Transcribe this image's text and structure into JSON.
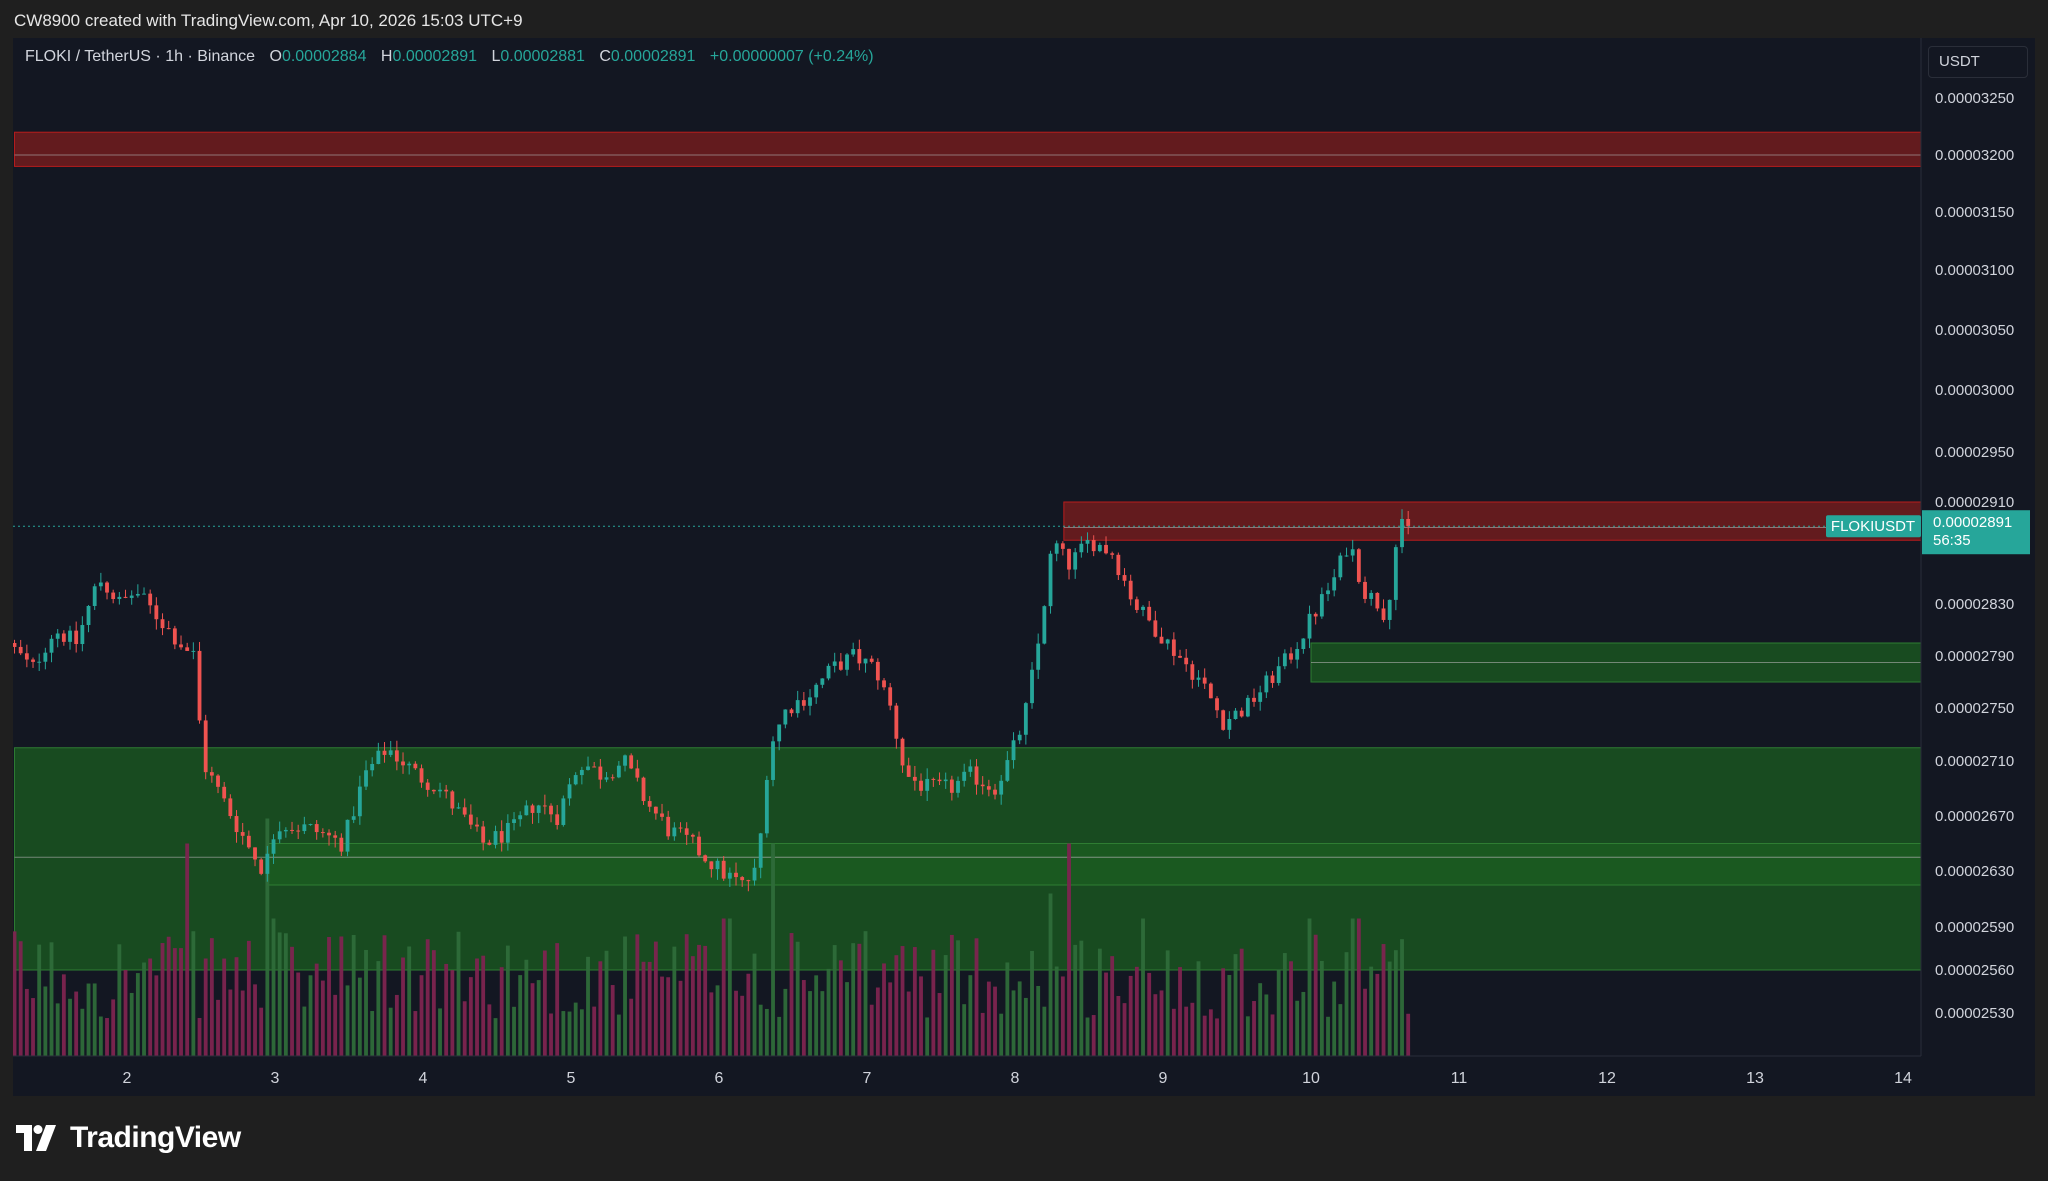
{
  "header": {
    "attribution": "CW8900 created with TradingView.com, Apr 10, 2026 15:03 UTC+9"
  },
  "legend": {
    "symbol": "FLOKI / TetherUS · 1h · Binance",
    "open_label": "O",
    "open": "0.00002884",
    "high_label": "H",
    "high": "0.00002891",
    "low_label": "L",
    "low": "0.00002881",
    "close_label": "C",
    "close": "0.00002891",
    "change": "+0.00000007 (+0.24%)"
  },
  "currency_button": "USDT",
  "price_tag": {
    "symbol": "FLOKIUSDT",
    "price": "0.00002891",
    "countdown": "56:35"
  },
  "footer": {
    "brand": "TradingView"
  },
  "colors": {
    "background": "#131722",
    "up": "#26a69a",
    "down": "#ef5350",
    "resistance_zone": "#7f1d1d",
    "support_zone": "#1b5e20"
  },
  "chart_data": {
    "type": "candlestick",
    "symbol": "FLOKIUSDT",
    "interval": "1h",
    "ylim": [
      2.5e-05,
      3.3e-05
    ],
    "y_ticks": [
      "0.00003250",
      "0.00003200",
      "0.00003150",
      "0.00003100",
      "0.00003050",
      "0.00003000",
      "0.00002950",
      "0.00002910",
      "0.00002830",
      "0.00002790",
      "0.00002750",
      "0.00002710",
      "0.00002670",
      "0.00002630",
      "0.00002590",
      "0.00002560",
      "0.00002530"
    ],
    "x_ticks": [
      "2",
      "3",
      "4",
      "5",
      "6",
      "7",
      "8",
      "9",
      "10",
      "11",
      "12",
      "13",
      "14"
    ],
    "x_tick_days": [
      2,
      3,
      4,
      5,
      6,
      7,
      8,
      9,
      10,
      11,
      12,
      13,
      14
    ],
    "xlim_days": [
      1.24,
      14.12
    ],
    "last_price": 2.891e-05,
    "zones": [
      {
        "kind": "resistance",
        "from": 3.19e-05,
        "to": 3.22e-05,
        "start_day": 1.24,
        "mid": 3.2e-05
      },
      {
        "kind": "resistance",
        "from": 2.88e-05,
        "to": 2.91e-05,
        "start_day": 8.33,
        "mid": 2.89e-05
      },
      {
        "kind": "support",
        "from": 2.77e-05,
        "to": 2.8e-05,
        "start_day": 10.0,
        "mid": 2.785e-05
      },
      {
        "kind": "support",
        "from": 2.56e-05,
        "to": 2.72e-05,
        "start_day": 1.24,
        "mid": 2.64e-05
      },
      {
        "kind": "support",
        "from": 2.62e-05,
        "to": 2.65e-05,
        "start_day": 2.95,
        "mid": 2.64e-05
      }
    ],
    "price_path": [
      [
        1.24,
        2.8e-05
      ],
      [
        1.4,
        2.78e-05
      ],
      [
        1.55,
        2.81e-05
      ],
      [
        1.7,
        2.8e-05
      ],
      [
        1.85,
        2.85e-05
      ],
      [
        2.0,
        2.83e-05
      ],
      [
        2.1,
        2.84e-05
      ],
      [
        2.25,
        2.82e-05
      ],
      [
        2.4,
        2.8e-05
      ],
      [
        2.5,
        2.79e-05
      ],
      [
        2.55,
        2.71e-05
      ],
      [
        2.7,
        2.68e-05
      ],
      [
        2.85,
        2.65e-05
      ],
      [
        2.97,
        2.63e-05
      ],
      [
        3.05,
        2.665e-05
      ],
      [
        3.3,
        2.66e-05
      ],
      [
        3.5,
        2.65e-05
      ],
      [
        3.65,
        2.7e-05
      ],
      [
        3.8,
        2.72e-05
      ],
      [
        4.0,
        2.7e-05
      ],
      [
        4.15,
        2.69e-05
      ],
      [
        4.3,
        2.67e-05
      ],
      [
        4.45,
        2.65e-05
      ],
      [
        4.65,
        2.66e-05
      ],
      [
        4.8,
        2.68e-05
      ],
      [
        4.95,
        2.67e-05
      ],
      [
        5.1,
        2.71e-05
      ],
      [
        5.25,
        2.7e-05
      ],
      [
        5.4,
        2.71e-05
      ],
      [
        5.55,
        2.68e-05
      ],
      [
        5.7,
        2.66e-05
      ],
      [
        5.85,
        2.65e-05
      ],
      [
        6.05,
        2.63e-05
      ],
      [
        6.2,
        2.62e-05
      ],
      [
        6.3,
        2.63e-05
      ],
      [
        6.38,
        2.72e-05
      ],
      [
        6.5,
        2.75e-05
      ],
      [
        6.65,
        2.76e-05
      ],
      [
        6.8,
        2.78e-05
      ],
      [
        6.95,
        2.79e-05
      ],
      [
        7.1,
        2.78e-05
      ],
      [
        7.2,
        2.75e-05
      ],
      [
        7.3,
        2.7e-05
      ],
      [
        7.45,
        2.69e-05
      ],
      [
        7.6,
        2.69e-05
      ],
      [
        7.75,
        2.7e-05
      ],
      [
        7.9,
        2.69e-05
      ],
      [
        8.0,
        2.71e-05
      ],
      [
        8.1,
        2.74e-05
      ],
      [
        8.2,
        2.8e-05
      ],
      [
        8.3,
        2.88e-05
      ],
      [
        8.4,
        2.86e-05
      ],
      [
        8.55,
        2.88e-05
      ],
      [
        8.7,
        2.87e-05
      ],
      [
        8.85,
        2.83e-05
      ],
      [
        9.0,
        2.81e-05
      ],
      [
        9.15,
        2.79e-05
      ],
      [
        9.3,
        2.77e-05
      ],
      [
        9.45,
        2.74e-05
      ],
      [
        9.6,
        2.75e-05
      ],
      [
        9.75,
        2.77e-05
      ],
      [
        9.9,
        2.79e-05
      ],
      [
        10.0,
        2.81e-05
      ],
      [
        10.1,
        2.83e-05
      ],
      [
        10.2,
        2.85e-05
      ],
      [
        10.3,
        2.88e-05
      ],
      [
        10.4,
        2.84e-05
      ],
      [
        10.5,
        2.83e-05
      ],
      [
        10.55,
        2.82e-05
      ],
      [
        10.62,
        2.88e-05
      ],
      [
        10.66,
        2.891e-05
      ]
    ],
    "volume_spikes": [
      [
        2.42,
        0.85
      ],
      [
        2.95,
        0.95
      ],
      [
        3.0,
        0.55
      ],
      [
        6.05,
        0.55
      ],
      [
        6.38,
        0.85
      ],
      [
        8.25,
        0.65
      ],
      [
        8.35,
        0.85
      ],
      [
        8.85,
        0.55
      ],
      [
        10.0,
        0.55
      ],
      [
        10.3,
        0.55
      ]
    ]
  }
}
